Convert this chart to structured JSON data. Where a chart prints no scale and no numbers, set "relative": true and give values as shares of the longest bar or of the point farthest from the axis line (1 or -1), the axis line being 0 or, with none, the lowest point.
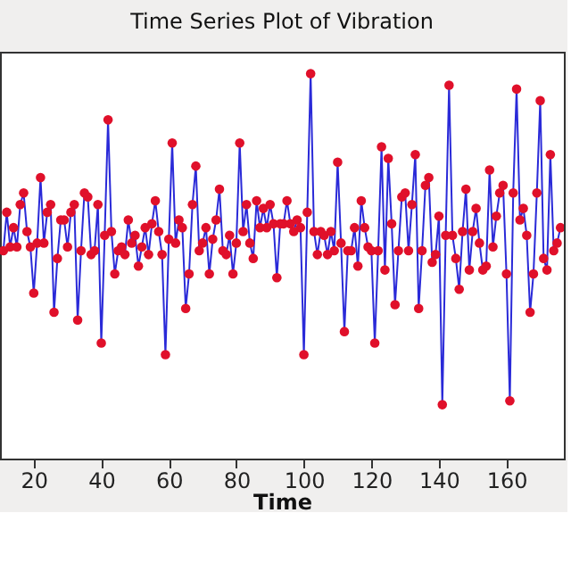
{
  "chart_data": {
    "type": "line",
    "title": "Time Series Plot of Vibration",
    "xlabel": "Time",
    "relative": true,
    "xlim": [
      10,
      177
    ],
    "xticks": [
      20,
      40,
      60,
      80,
      100,
      120,
      140,
      160
    ],
    "grid": false,
    "tick_labels": "x",
    "x": [
      11,
      12,
      13,
      14,
      15,
      16,
      17,
      18,
      19,
      20,
      21,
      22,
      23,
      24,
      25,
      26,
      27,
      28,
      29,
      30,
      31,
      32,
      33,
      34,
      35,
      36,
      37,
      38,
      39,
      40,
      41,
      42,
      43,
      44,
      45,
      46,
      47,
      48,
      49,
      50,
      51,
      52,
      53,
      54,
      55,
      56,
      57,
      58,
      59,
      60,
      61,
      62,
      63,
      64,
      65,
      66,
      67,
      68,
      69,
      70,
      71,
      72,
      73,
      74,
      75,
      76,
      77,
      78,
      79,
      80,
      81,
      82,
      83,
      84,
      85,
      86,
      87,
      88,
      89,
      90,
      91,
      92,
      93,
      94,
      95,
      96,
      97,
      98,
      99,
      100,
      101,
      102,
      103,
      104,
      105,
      106,
      107,
      108,
      109,
      110,
      111,
      112,
      113,
      114,
      115,
      116,
      117,
      118,
      119,
      120,
      121,
      122,
      123,
      124,
      125,
      126,
      127,
      128,
      129,
      130,
      131,
      132,
      133,
      134,
      135,
      136,
      137,
      138,
      139,
      140,
      141,
      142,
      143,
      144,
      145,
      146,
      147,
      148,
      149,
      150,
      151,
      152,
      153,
      154,
      155,
      156,
      157,
      158,
      159,
      160,
      161,
      162,
      163,
      164,
      165,
      166,
      167,
      168,
      169,
      170,
      171,
      172,
      173,
      174,
      175,
      176
    ],
    "series": [
      {
        "type": "line",
        "color": "#2a2ad8",
        "marker": "none",
        "line_style": "solid",
        "values": [
          0.54,
          0.64,
          0.55,
          0.6,
          0.55,
          0.66,
          0.69,
          0.59,
          0.55,
          0.43,
          0.56,
          0.73,
          0.56,
          0.64,
          0.66,
          0.38,
          0.52,
          0.62,
          0.62,
          0.55,
          0.64,
          0.66,
          0.36,
          0.54,
          0.69,
          0.68,
          0.53,
          0.54,
          0.66,
          0.3,
          0.58,
          0.88,
          0.59,
          0.48,
          0.54,
          0.55,
          0.53,
          0.62,
          0.56,
          0.58,
          0.5,
          0.55,
          0.6,
          0.53,
          0.61,
          0.67,
          0.59,
          0.53,
          0.27,
          0.57,
          0.82,
          0.56,
          0.62,
          0.6,
          0.39,
          0.48,
          0.66,
          0.76,
          0.54,
          0.56,
          0.6,
          0.48,
          0.57,
          0.62,
          0.7,
          0.54,
          0.53,
          0.58,
          0.48,
          0.56,
          0.82,
          0.59,
          0.66,
          0.56,
          0.52,
          0.67,
          0.6,
          0.65,
          0.6,
          0.66,
          0.61,
          0.47,
          0.61,
          0.61,
          0.67,
          0.61,
          0.59,
          0.62,
          0.6,
          0.27,
          0.64,
          1,
          0.59,
          0.53,
          0.59,
          0.58,
          0.53,
          0.59,
          0.54,
          0.77,
          0.56,
          0.33,
          0.54,
          0.54,
          0.6,
          0.5,
          0.67,
          0.6,
          0.55,
          0.54,
          0.3,
          0.54,
          0.81,
          0.49,
          0.78,
          0.61,
          0.4,
          0.54,
          0.68,
          0.69,
          0.54,
          0.66,
          0.79,
          0.39,
          0.54,
          0.71,
          0.73,
          0.51,
          0.53,
          0.63,
          0.14,
          0.58,
          0.97,
          0.58,
          0.52,
          0.44,
          0.59,
          0.7,
          0.49,
          0.59,
          0.65,
          0.56,
          0.49,
          0.5,
          0.75,
          0.55,
          0.63,
          0.69,
          0.71,
          0.48,
          0.15,
          0.69,
          0.96,
          0.62,
          0.65,
          0.58,
          0.38,
          0.48,
          0.69,
          0.93,
          0.52,
          0.49,
          0.79,
          0.54,
          0.56,
          0.6
        ]
      },
      {
        "type": "scatter",
        "color": "#e0102a",
        "marker": "circle",
        "values": [
          0.54,
          0.64,
          0.55,
          0.6,
          0.55,
          0.66,
          0.69,
          0.59,
          0.55,
          0.43,
          0.56,
          0.73,
          0.56,
          0.64,
          0.66,
          0.38,
          0.52,
          0.62,
          0.62,
          0.55,
          0.64,
          0.66,
          0.36,
          0.54,
          0.69,
          0.68,
          0.53,
          0.54,
          0.66,
          0.3,
          0.58,
          0.88,
          0.59,
          0.48,
          0.54,
          0.55,
          0.53,
          0.62,
          0.56,
          0.58,
          0.5,
          0.55,
          0.6,
          0.53,
          0.61,
          0.67,
          0.59,
          0.53,
          0.27,
          0.57,
          0.82,
          0.56,
          0.62,
          0.6,
          0.39,
          0.48,
          0.66,
          0.76,
          0.54,
          0.56,
          0.6,
          0.48,
          0.57,
          0.62,
          0.7,
          0.54,
          0.53,
          0.58,
          0.48,
          0.56,
          0.82,
          0.59,
          0.66,
          0.56,
          0.52,
          0.67,
          0.6,
          0.65,
          0.6,
          0.66,
          0.61,
          0.47,
          0.61,
          0.61,
          0.67,
          0.61,
          0.59,
          0.62,
          0.6,
          0.27,
          0.64,
          1,
          0.59,
          0.53,
          0.59,
          0.58,
          0.53,
          0.59,
          0.54,
          0.77,
          0.56,
          0.33,
          0.54,
          0.54,
          0.6,
          0.5,
          0.67,
          0.6,
          0.55,
          0.54,
          0.3,
          0.54,
          0.81,
          0.49,
          0.78,
          0.61,
          0.4,
          0.54,
          0.68,
          0.69,
          0.54,
          0.66,
          0.79,
          0.39,
          0.54,
          0.71,
          0.73,
          0.51,
          0.53,
          0.63,
          0.14,
          0.58,
          0.97,
          0.58,
          0.52,
          0.44,
          0.59,
          0.7,
          0.49,
          0.59,
          0.65,
          0.56,
          0.49,
          0.5,
          0.75,
          0.55,
          0.63,
          0.69,
          0.71,
          0.48,
          0.15,
          0.69,
          0.96,
          0.62,
          0.65,
          0.58,
          0.38,
          0.48,
          0.69,
          0.93,
          0.52,
          0.49,
          0.79,
          0.54,
          0.56,
          0.6
        ]
      }
    ]
  }
}
